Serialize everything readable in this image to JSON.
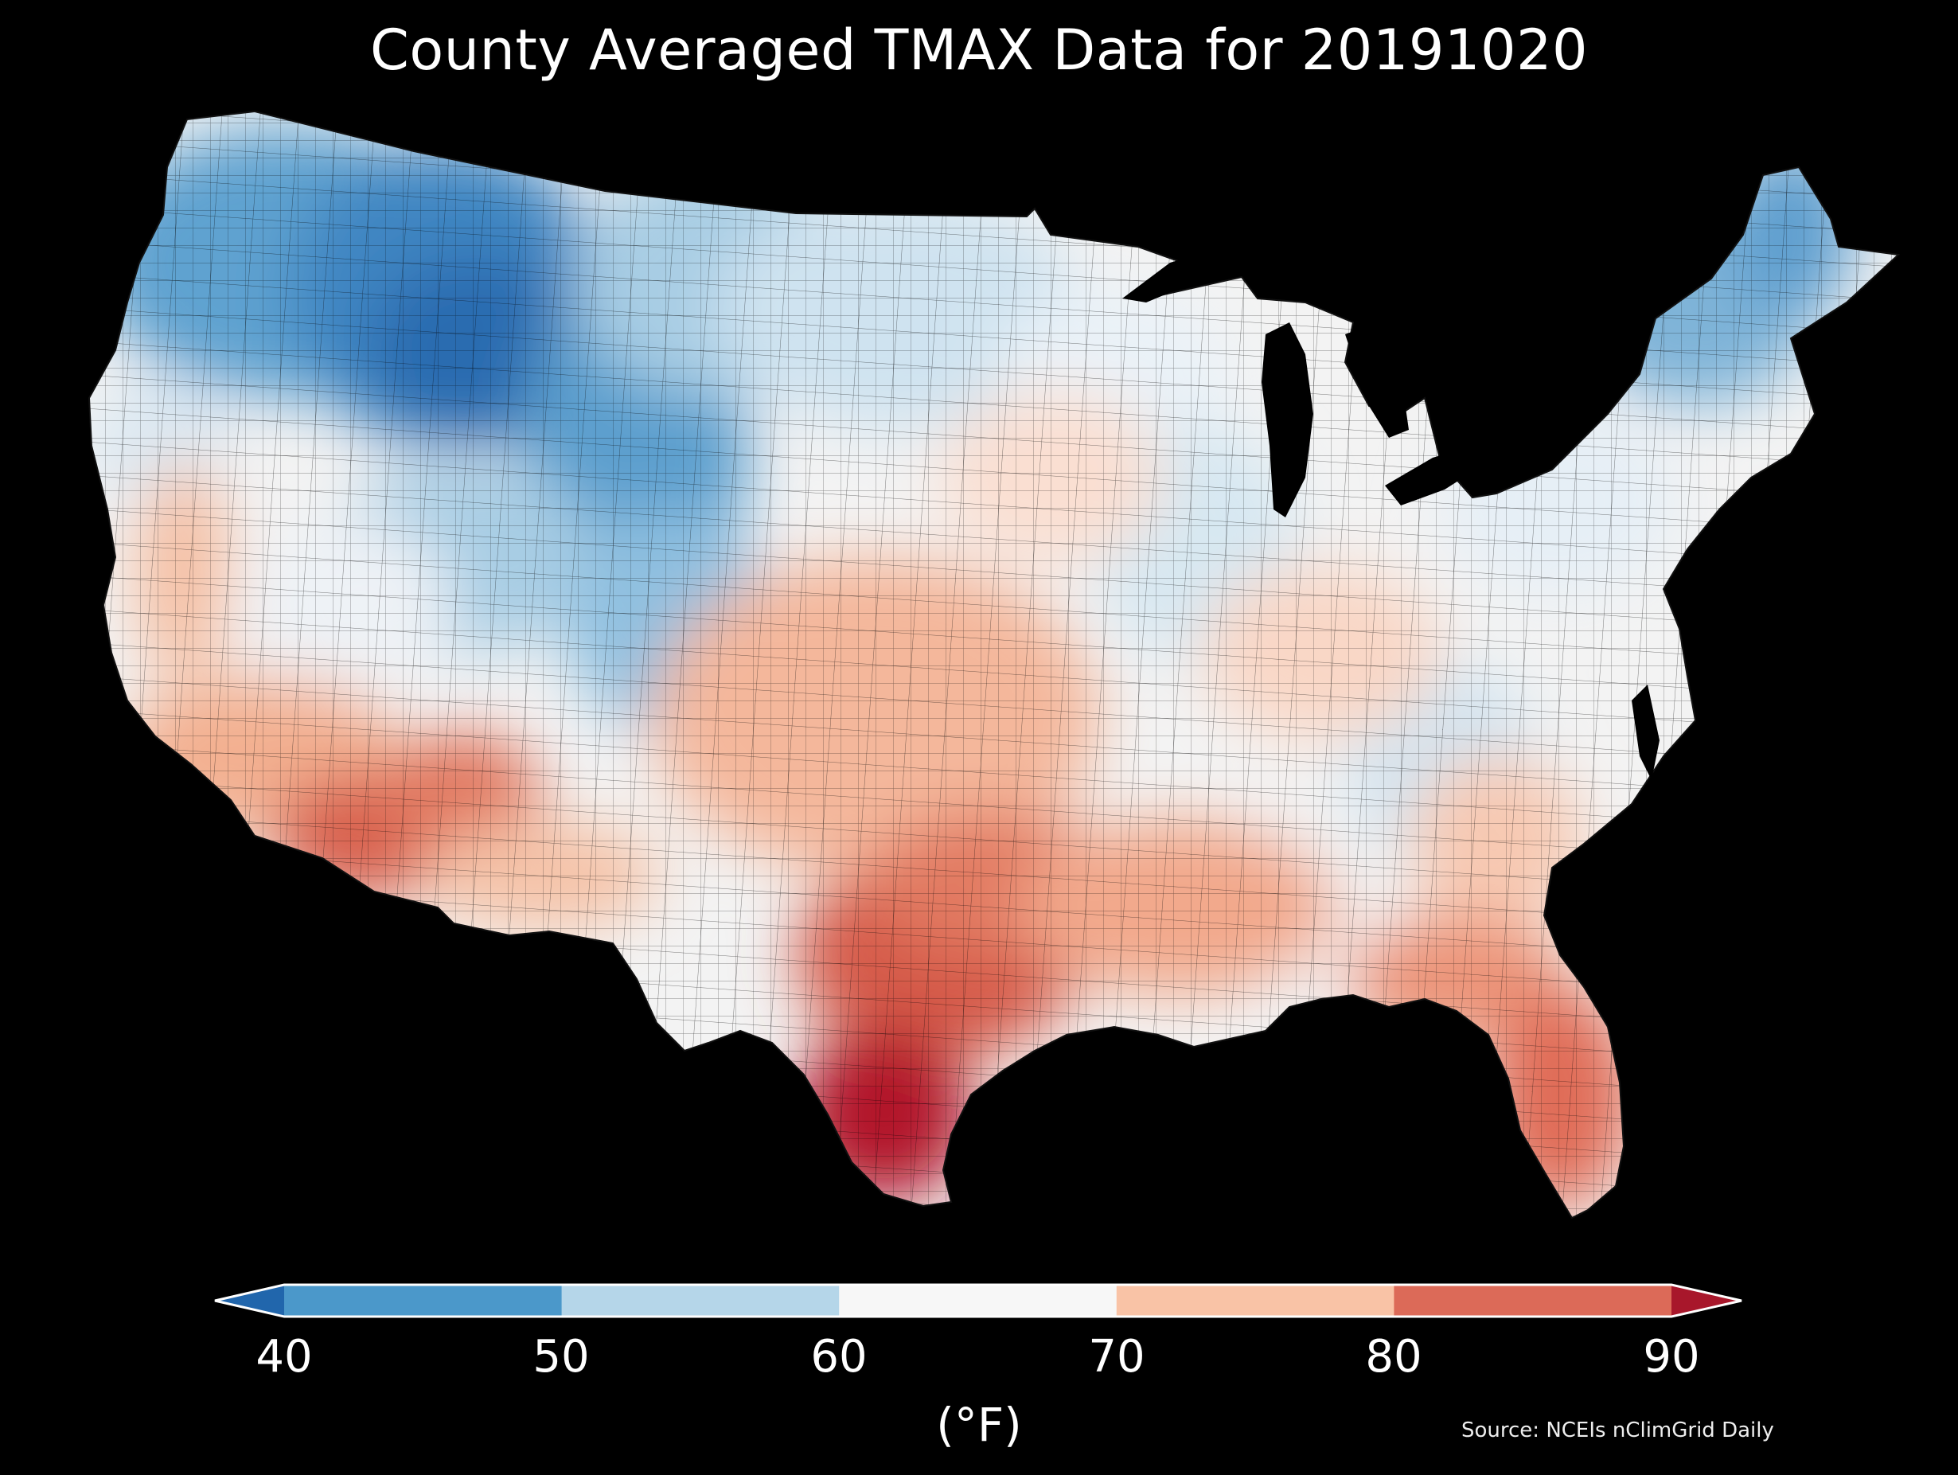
{
  "title": "County Averaged TMAX Data for 20191020",
  "source": "Source: NCEIs nClimGrid Daily",
  "colorbar": {
    "unit": "(°F)",
    "ticks": [
      "40",
      "50",
      "60",
      "70",
      "80",
      "90"
    ],
    "bins": [
      {
        "range": "<40",
        "color": "#2166ac"
      },
      {
        "range": "40-50",
        "color": "#4b98ca"
      },
      {
        "range": "50-60",
        "color": "#b5d6e9"
      },
      {
        "range": "60-70",
        "color": "#f7f7f7"
      },
      {
        "range": "70-80",
        "color": "#f9c3a6"
      },
      {
        "range": "80-90",
        "color": "#dc6a58"
      },
      {
        "range": ">90",
        "color": "#a8172b"
      }
    ]
  },
  "map": {
    "region": "Contiguous United States",
    "variable": "TMAX",
    "date": "20191020",
    "background": "#000000",
    "regional_pattern": [
      {
        "area": "northern Rockies",
        "tmax_range": "<50",
        "color": "#2a6cb0"
      },
      {
        "area": "northern plains",
        "tmax_range": "50-60",
        "color": "#b5d6e9"
      },
      {
        "area": "New England",
        "tmax_range": "50-60",
        "color": "#7fb4d8"
      },
      {
        "area": "Great Lakes / Ohio Valley",
        "tmax_range": "60-70",
        "color": "#eef2f6"
      },
      {
        "area": "Appalachians",
        "tmax_range": "60-70",
        "color": "#d3e5f1"
      },
      {
        "area": "southern plains",
        "tmax_range": "70-80",
        "color": "#f4b79b"
      },
      {
        "area": "Southeast / Florida",
        "tmax_range": "70-80",
        "color": "#e88a70"
      },
      {
        "area": "desert southwest",
        "tmax_range": "80-90",
        "color": "#d8604e"
      },
      {
        "area": "south Texas",
        "tmax_range": ">90",
        "color": "#b2182b"
      }
    ]
  }
}
